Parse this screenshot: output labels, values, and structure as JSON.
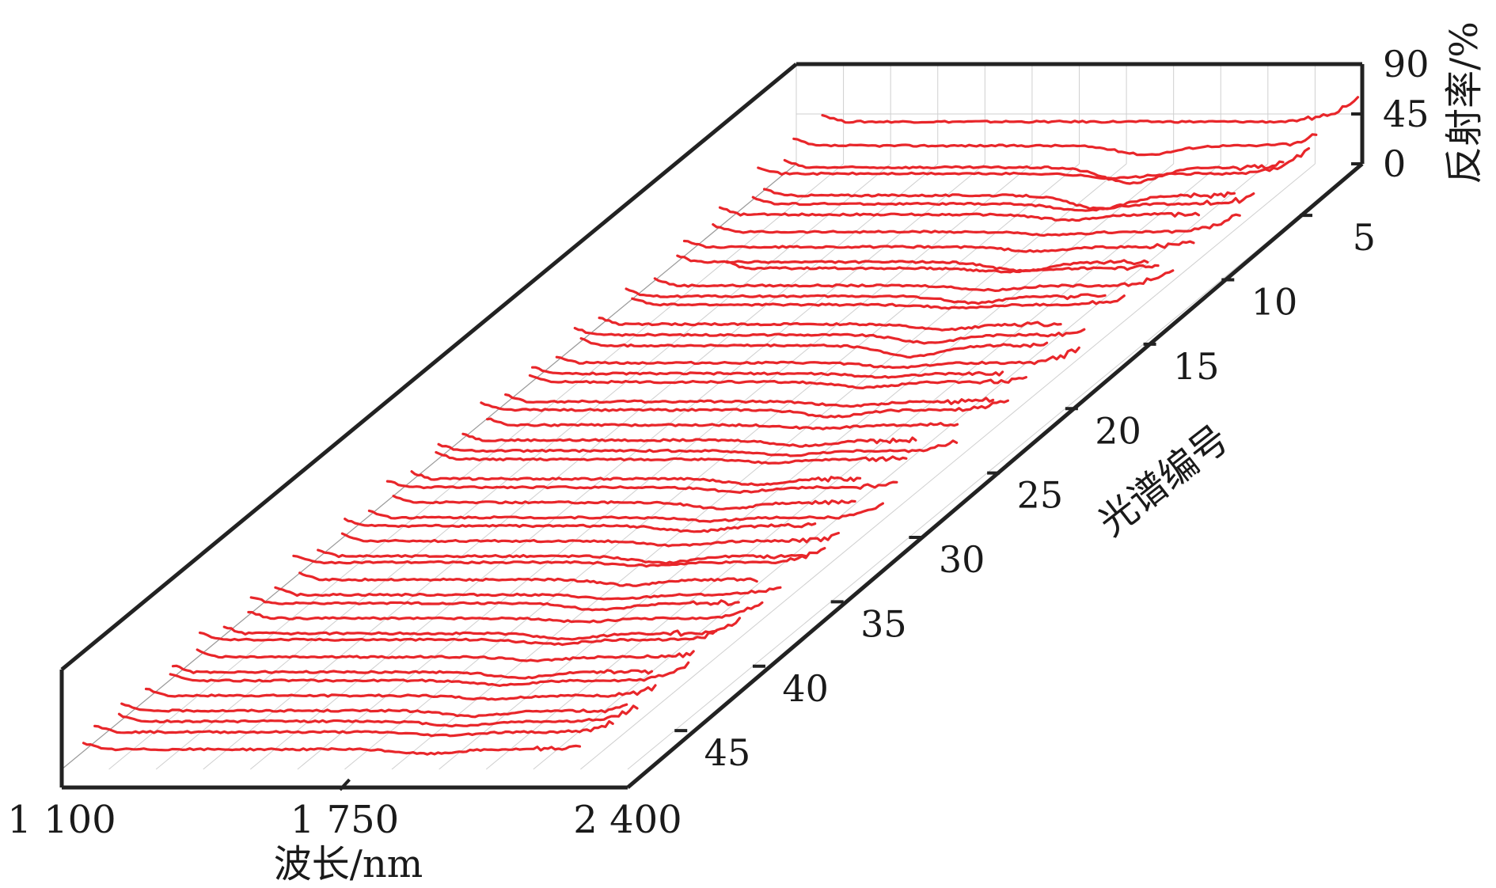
{
  "chart_data": {
    "type": "line",
    "subtype": "3d-waterfall",
    "title": "",
    "xlabel": "波长/nm",
    "ylabel": "光谱编号",
    "zlabel": "反射率/%",
    "xlim": [
      1100,
      2400
    ],
    "ylim": [
      1,
      48
    ],
    "zlim": [
      0,
      90
    ],
    "x_ticks": [
      1100,
      1750,
      2400
    ],
    "x_tick_labels": [
      "1 100",
      "1 750",
      "2 400"
    ],
    "y_ticks": [
      5,
      10,
      15,
      20,
      25,
      30,
      35,
      40,
      45
    ],
    "y_tick_labels": [
      "5",
      "10",
      "15",
      "20",
      "25",
      "30",
      "35",
      "40",
      "45"
    ],
    "z_ticks": [
      0,
      45,
      90
    ],
    "z_tick_labels": [
      "0",
      "45",
      "90"
    ],
    "series_color": "#e8262a",
    "grid": true,
    "series": [
      {
        "id": 1,
        "start": 1160,
        "end": 2390,
        "level": 38,
        "dip": 0,
        "tail": 26
      },
      {
        "id": 2,
        "start": 1130,
        "end": 2330,
        "level": 28,
        "dip": 8,
        "tail": 30
      },
      {
        "id": 3,
        "start": 1145,
        "end": 2290,
        "level": 20,
        "dip": 14,
        "tail": 30
      },
      {
        "id": 4,
        "start": 1120,
        "end": 2385,
        "level": 26,
        "dip": 4,
        "tail": 28
      },
      {
        "id": 5,
        "start": 1170,
        "end": 2250,
        "level": 18,
        "dip": 12,
        "tail": 30
      },
      {
        "id": 6,
        "start": 1180,
        "end": 2330,
        "level": 22,
        "dip": 6,
        "tail": 24
      },
      {
        "id": 7,
        "start": 1140,
        "end": 2240,
        "level": 24,
        "dip": 5,
        "tail": 32
      },
      {
        "id": 8,
        "start": 1160,
        "end": 2370,
        "level": 20,
        "dip": 3,
        "tail": 26
      },
      {
        "id": 9,
        "start": 1130,
        "end": 2300,
        "level": 18,
        "dip": 4,
        "tail": 30
      },
      {
        "id": 10,
        "start": 1150,
        "end": 2230,
        "level": 16,
        "dip": 8,
        "tail": 28
      },
      {
        "id": 11,
        "start": 1300,
        "end": 2290,
        "level": 22,
        "dip": 3,
        "tail": 30
      },
      {
        "id": 12,
        "start": 1170,
        "end": 2360,
        "level": 18,
        "dip": 4,
        "tail": 26
      },
      {
        "id": 13,
        "start": 1140,
        "end": 2240,
        "level": 20,
        "dip": 6,
        "tail": 30
      },
      {
        "id": 14,
        "start": 1190,
        "end": 2320,
        "level": 24,
        "dip": 3,
        "tail": 28
      },
      {
        "id": 15,
        "start": 1150,
        "end": 2210,
        "level": 18,
        "dip": 5,
        "tail": 32
      },
      {
        "id": 16,
        "start": 1130,
        "end": 2300,
        "level": 20,
        "dip": 7,
        "tail": 26
      },
      {
        "id": 17,
        "start": 1180,
        "end": 2250,
        "level": 22,
        "dip": 10,
        "tail": 30
      },
      {
        "id": 18,
        "start": 1160,
        "end": 2360,
        "level": 18,
        "dip": 4,
        "tail": 24
      },
      {
        "id": 19,
        "start": 1140,
        "end": 2220,
        "level": 20,
        "dip": 3,
        "tail": 30
      },
      {
        "id": 20,
        "start": 1170,
        "end": 2310,
        "level": 24,
        "dip": 5,
        "tail": 28
      },
      {
        "id": 21,
        "start": 1150,
        "end": 2270,
        "level": 18,
        "dip": 4,
        "tail": 30
      },
      {
        "id": 22,
        "start": 1130,
        "end": 2340,
        "level": 22,
        "dip": 6,
        "tail": 26
      },
      {
        "id": 23,
        "start": 1180,
        "end": 2260,
        "level": 20,
        "dip": 3,
        "tail": 30
      },
      {
        "id": 24,
        "start": 1160,
        "end": 2200,
        "level": 18,
        "dip": 5,
        "tail": 32
      },
      {
        "id": 25,
        "start": 1140,
        "end": 2330,
        "level": 20,
        "dip": 4,
        "tail": 26
      },
      {
        "id": 26,
        "start": 1170,
        "end": 2250,
        "level": 24,
        "dip": 3,
        "tail": 30
      },
      {
        "id": 27,
        "start": 1150,
        "end": 2180,
        "level": 18,
        "dip": 5,
        "tail": 28
      },
      {
        "id": 28,
        "start": 1130,
        "end": 2300,
        "level": 22,
        "dip": 4,
        "tail": 30
      },
      {
        "id": 29,
        "start": 1180,
        "end": 2240,
        "level": 20,
        "dip": 6,
        "tail": 26
      },
      {
        "id": 30,
        "start": 1160,
        "end": 2340,
        "level": 18,
        "dip": 3,
        "tail": 30
      },
      {
        "id": 31,
        "start": 1140,
        "end": 2220,
        "level": 22,
        "dip": 5,
        "tail": 28
      },
      {
        "id": 32,
        "start": 1170,
        "end": 2310,
        "level": 20,
        "dip": 4,
        "tail": 30
      },
      {
        "id": 33,
        "start": 1150,
        "end": 2270,
        "level": 18,
        "dip": 6,
        "tail": 26
      },
      {
        "id": 34,
        "start": 1130,
        "end": 2350,
        "level": 24,
        "dip": 3,
        "tail": 30
      },
      {
        "id": 35,
        "start": 1180,
        "end": 2230,
        "level": 20,
        "dip": 5,
        "tail": 28
      },
      {
        "id": 36,
        "start": 1160,
        "end": 2320,
        "level": 18,
        "dip": 4,
        "tail": 30
      },
      {
        "id": 37,
        "start": 1140,
        "end": 2260,
        "level": 22,
        "dip": 6,
        "tail": 26
      },
      {
        "id": 38,
        "start": 1170,
        "end": 2350,
        "level": 20,
        "dip": 3,
        "tail": 30
      },
      {
        "id": 39,
        "start": 1150,
        "end": 2280,
        "level": 18,
        "dip": 5,
        "tail": 28
      },
      {
        "id": 40,
        "start": 1130,
        "end": 2370,
        "level": 24,
        "dip": 4,
        "tail": 30
      },
      {
        "id": 41,
        "start": 1160,
        "end": 2300,
        "level": 20,
        "dip": 3,
        "tail": 26
      },
      {
        "id": 42,
        "start": 1140,
        "end": 2240,
        "level": 18,
        "dip": 5,
        "tail": 30
      },
      {
        "id": 43,
        "start": 1170,
        "end": 2360,
        "level": 22,
        "dip": 4,
        "tail": 28
      },
      {
        "id": 44,
        "start": 1150,
        "end": 2320,
        "level": 20,
        "dip": 3,
        "tail": 30
      },
      {
        "id": 45,
        "start": 1130,
        "end": 2290,
        "level": 18,
        "dip": 5,
        "tail": 26
      },
      {
        "id": 46,
        "start": 1160,
        "end": 2350,
        "level": 20,
        "dip": 4,
        "tail": 30
      },
      {
        "id": 47,
        "start": 1140,
        "end": 2330,
        "level": 22,
        "dip": 3,
        "tail": 28
      },
      {
        "id": 48,
        "start": 1150,
        "end": 2290,
        "level": 18,
        "dip": 4,
        "tail": 26
      }
    ]
  }
}
